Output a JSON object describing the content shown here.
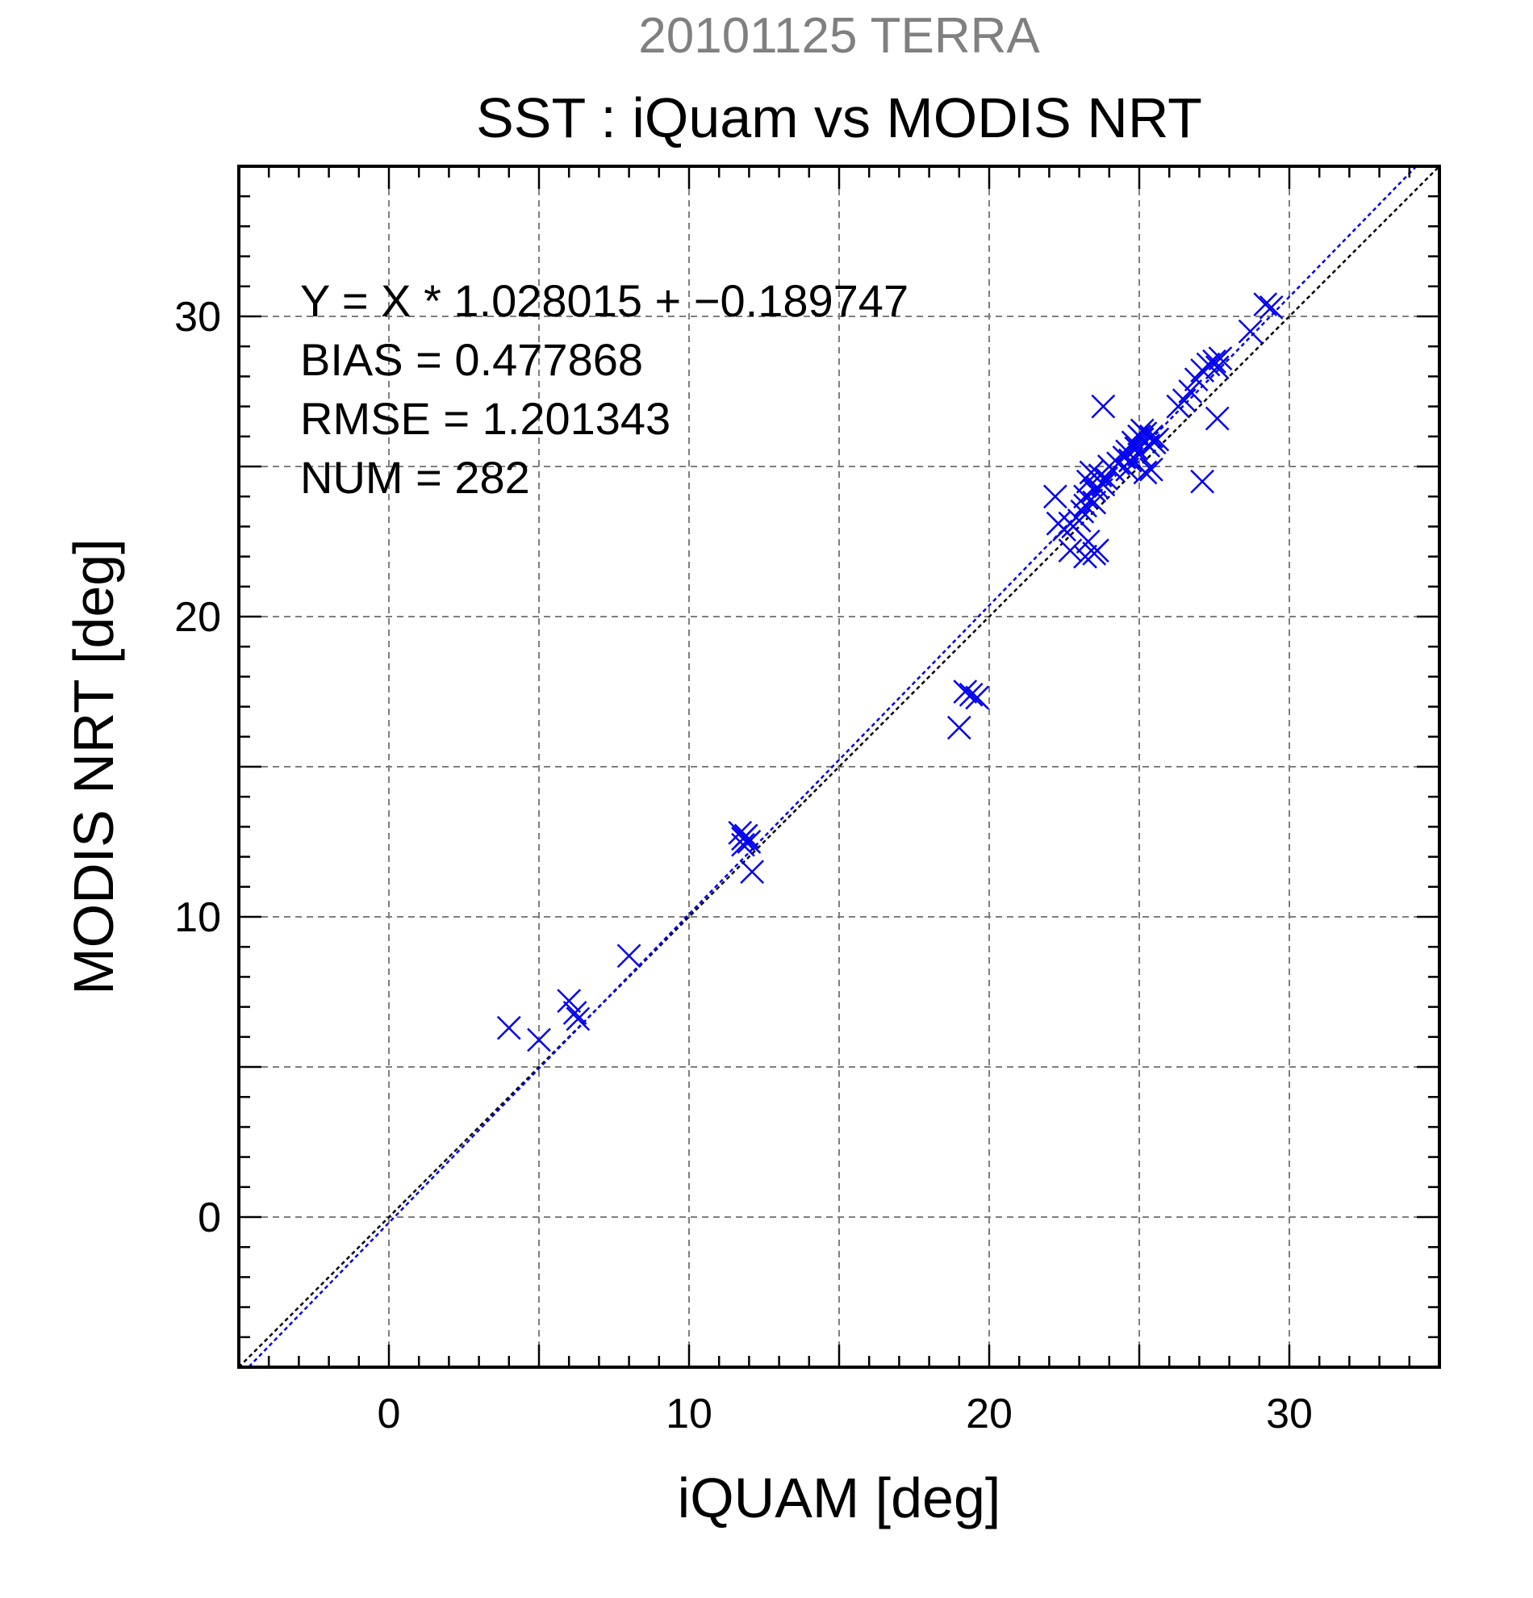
{
  "chart_data": {
    "type": "scatter",
    "subtitle": "20101125 TERRA",
    "title": "SST : iQuam vs MODIS NRT",
    "xlabel": "iQUAM [deg]",
    "ylabel": "MODIS NRT [deg]",
    "xlim": [
      -5,
      35
    ],
    "ylim": [
      -5,
      35
    ],
    "xticks": [
      0,
      10,
      20,
      30
    ],
    "yticks": [
      0,
      10,
      20,
      30
    ],
    "xtick_labels": [
      "0",
      "10",
      "20",
      "30"
    ],
    "ytick_labels": [
      "0",
      "10",
      "20",
      "30"
    ],
    "grid": true,
    "stats": [
      "Y = X * 1.028015 + −0.189747",
      "BIAS = 0.477868",
      "RMSE = 1.201343",
      "NUM = 282"
    ],
    "fit_line": {
      "slope": 1.028015,
      "intercept": -0.189747,
      "color": "#0000ee",
      "style": "dotted"
    },
    "identity_line": {
      "slope": 1,
      "intercept": 0,
      "color": "#000000",
      "style": "dotted"
    },
    "series": [
      {
        "marker": "x",
        "color": "#0000ee",
        "x": [
          4.0,
          5.0,
          6.0,
          6.2,
          6.3,
          8.0,
          11.7,
          11.8,
          11.8,
          12.0,
          11.9,
          12.1,
          19.0,
          19.2,
          19.4,
          19.6,
          22.2,
          22.3,
          22.5,
          22.7,
          22.7,
          22.8,
          23.0,
          23.1,
          23.2,
          23.2,
          23.3,
          23.4,
          23.5,
          23.5,
          23.6,
          23.7,
          23.8,
          23.9,
          24.0,
          24.1,
          24.3,
          23.2,
          23.3,
          23.6,
          24.6,
          23.5,
          23.8,
          24.5,
          24.6,
          24.7,
          24.8,
          24.9,
          25.0,
          25.0,
          25.1,
          25.2,
          25.3,
          25.4,
          25.5,
          25.6,
          25.1,
          25.2,
          25.4,
          26.3,
          26.5,
          26.7,
          26.9,
          27.1,
          27.3,
          27.5,
          27.6,
          27.7,
          27.1,
          27.6,
          28.7,
          29.2,
          29.4
        ],
        "y": [
          6.3,
          5.9,
          7.2,
          6.8,
          6.6,
          8.7,
          12.8,
          12.6,
          12.4,
          12.5,
          12.7,
          11.5,
          16.3,
          17.5,
          17.4,
          17.3,
          24.0,
          23.1,
          22.9,
          23.1,
          22.2,
          23.0,
          23.2,
          23.5,
          23.7,
          24.0,
          24.5,
          24.8,
          24.2,
          23.8,
          24.3,
          24.7,
          24.4,
          24.6,
          25.0,
          24.9,
          25.1,
          22.0,
          22.5,
          22.2,
          24.9,
          22.1,
          27.0,
          25.3,
          25.5,
          25.2,
          25.8,
          25.6,
          26.0,
          25.4,
          25.9,
          26.1,
          25.7,
          26.0,
          25.8,
          25.9,
          26.2,
          24.8,
          24.9,
          27.0,
          27.2,
          27.5,
          27.9,
          28.2,
          28.4,
          28.5,
          28.3,
          28.6,
          24.5,
          26.6,
          29.5,
          30.4,
          30.3
        ]
      }
    ],
    "colors": {
      "subtitle": "#808080",
      "title": "#000000",
      "grid": "#7f7f7f",
      "frame": "#000000"
    }
  }
}
